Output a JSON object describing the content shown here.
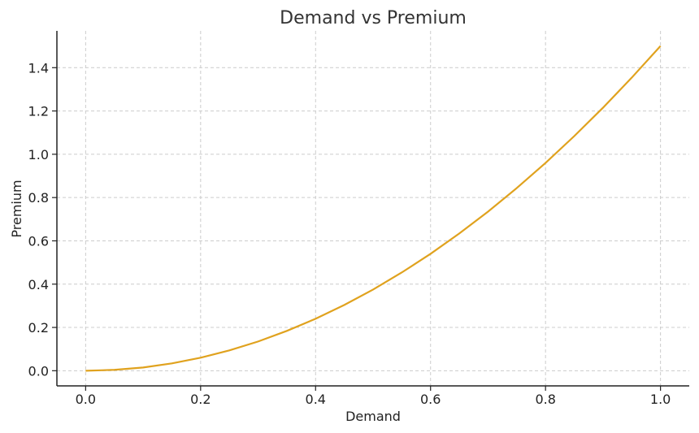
{
  "chart_data": {
    "type": "line",
    "title": "Demand vs Premium",
    "xlabel": "Demand",
    "ylabel": "Premium",
    "xlim": [
      -0.05,
      1.05
    ],
    "ylim": [
      -0.07,
      1.57
    ],
    "xticks": [
      "0.0",
      "0.2",
      "0.4",
      "0.6",
      "0.8",
      "1.0"
    ],
    "yticks": [
      "0.0",
      "0.2",
      "0.4",
      "0.6",
      "0.8",
      "1.0",
      "1.2",
      "1.4"
    ],
    "grid": true,
    "series": [
      {
        "color": "#e0a21e",
        "x": [
          0.0,
          0.05,
          0.1,
          0.15,
          0.2,
          0.25,
          0.3,
          0.35,
          0.4,
          0.45,
          0.5,
          0.55,
          0.6,
          0.65,
          0.7,
          0.75,
          0.8,
          0.85,
          0.9,
          0.95,
          1.0
        ],
        "y": [
          0.0,
          0.004,
          0.015,
          0.034,
          0.06,
          0.094,
          0.135,
          0.184,
          0.24,
          0.304,
          0.375,
          0.454,
          0.54,
          0.634,
          0.735,
          0.844,
          0.96,
          1.084,
          1.215,
          1.354,
          1.5
        ]
      }
    ]
  }
}
